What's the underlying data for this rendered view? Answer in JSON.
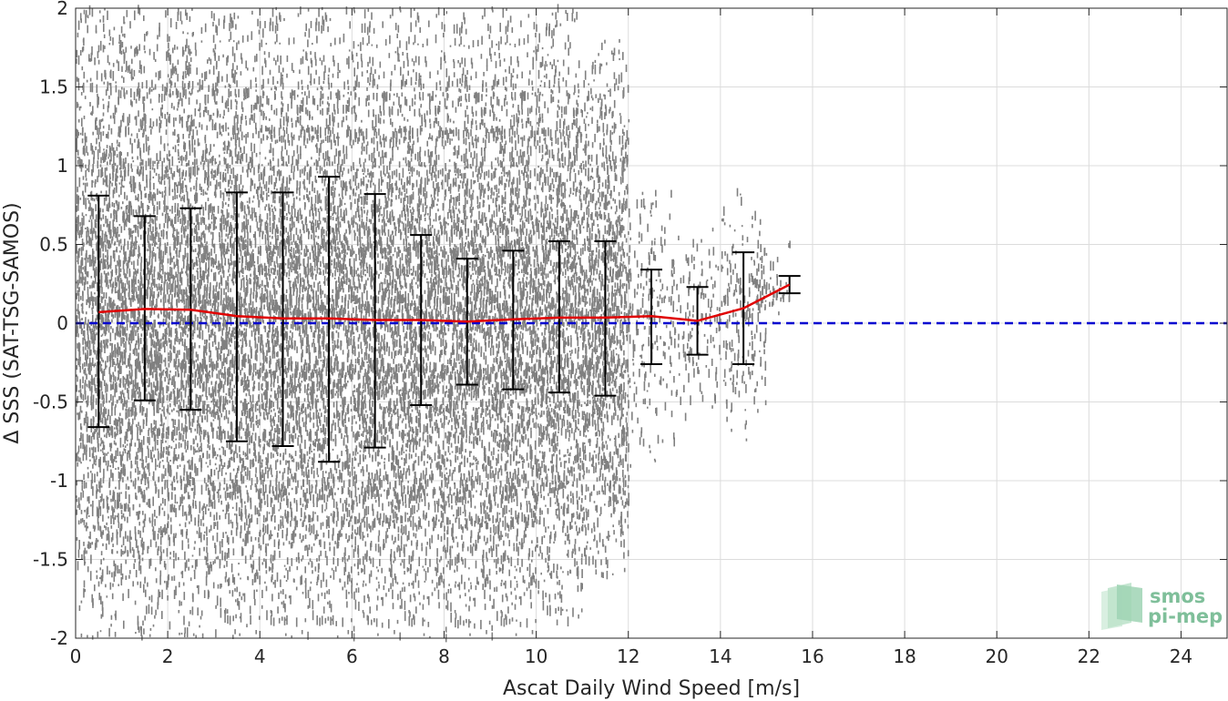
{
  "chart_data": {
    "type": "scatter",
    "title": "",
    "xlabel": "Ascat Daily Wind Speed [m/s]",
    "ylabel": "Δ SSS (SAT-TSG-SAMOS)",
    "xlim": [
      0,
      25
    ],
    "ylim": [
      -2,
      2
    ],
    "grid": true,
    "x_ticks": [
      0,
      2,
      4,
      6,
      8,
      10,
      12,
      14,
      16,
      18,
      20,
      22,
      24
    ],
    "y_ticks": [
      -2,
      -1.5,
      -1,
      -0.5,
      0,
      0.5,
      1,
      1.5,
      2
    ],
    "x_tick_labels": [
      "0",
      "2",
      "4",
      "6",
      "8",
      "10",
      "12",
      "14",
      "16",
      "18",
      "20",
      "22",
      "24"
    ],
    "y_tick_labels": [
      "-2",
      "-1.5",
      "-1",
      "-0.5",
      "0",
      "0.5",
      "1",
      "1.5",
      "2"
    ],
    "scatter_color": "#808080",
    "scatter_extent": [
      {
        "x": 0.5,
        "lo": -2.0,
        "hi": 2.0
      },
      {
        "x": 1.5,
        "lo": -2.0,
        "hi": 2.0
      },
      {
        "x": 2.5,
        "lo": -2.0,
        "hi": 2.0
      },
      {
        "x": 3.5,
        "lo": -2.0,
        "hi": 2.0
      },
      {
        "x": 4.5,
        "lo": -2.0,
        "hi": 2.0
      },
      {
        "x": 5.5,
        "lo": -2.0,
        "hi": 2.0
      },
      {
        "x": 6.5,
        "lo": -2.0,
        "hi": 2.0
      },
      {
        "x": 7.5,
        "lo": -2.0,
        "hi": 2.0
      },
      {
        "x": 8.5,
        "lo": -2.0,
        "hi": 2.0
      },
      {
        "x": 9.5,
        "lo": -2.0,
        "hi": 2.0
      },
      {
        "x": 10.5,
        "lo": -1.9,
        "hi": 2.0
      },
      {
        "x": 11.5,
        "lo": -1.6,
        "hi": 1.8
      },
      {
        "x": 12.5,
        "lo": -1.0,
        "hi": 0.9
      },
      {
        "x": 13.5,
        "lo": -0.6,
        "hi": 0.6
      },
      {
        "x": 14.5,
        "lo": -0.75,
        "hi": 0.9
      },
      {
        "x": 15.0,
        "lo": 0.0,
        "hi": 0.55
      }
    ],
    "series": [
      {
        "name": "",
        "type": "errorbar",
        "color": "#000000",
        "x": [
          0.5,
          1.5,
          2.5,
          3.5,
          4.5,
          5.5,
          6.5,
          7.5,
          8.5,
          9.5,
          10.5,
          11.5,
          12.5,
          13.5,
          14.5,
          15.5
        ],
        "lower": [
          -0.66,
          -0.49,
          -0.55,
          -0.75,
          -0.78,
          -0.88,
          -0.79,
          -0.52,
          -0.39,
          -0.42,
          -0.44,
          -0.46,
          -0.26,
          -0.2,
          -0.26,
          0.19
        ],
        "upper": [
          0.81,
          0.68,
          0.73,
          0.83,
          0.83,
          0.93,
          0.82,
          0.56,
          0.41,
          0.46,
          0.52,
          0.52,
          0.34,
          0.23,
          0.45,
          0.3
        ]
      },
      {
        "name": "",
        "type": "line",
        "color": "#e00000",
        "x": [
          0.5,
          1.5,
          2.5,
          3.5,
          4.5,
          5.5,
          6.5,
          7.5,
          8.5,
          9.5,
          10.5,
          11.5,
          12.5,
          13.5,
          14.5,
          15.5
        ],
        "values": [
          0.07,
          0.09,
          0.085,
          0.045,
          0.03,
          0.03,
          0.02,
          0.02,
          0.01,
          0.025,
          0.035,
          0.035,
          0.045,
          0.015,
          0.095,
          0.245
        ]
      },
      {
        "name": "",
        "type": "reference-line",
        "style": "dashed",
        "color": "#0000d0",
        "y": 0
      }
    ]
  },
  "logo": {
    "line1": "smos",
    "line2": "pi-mep",
    "text_color": "#7fbf9a",
    "mark_colors": [
      "#9fd3b4",
      "#bfe3cc",
      "#d9efe1"
    ]
  }
}
